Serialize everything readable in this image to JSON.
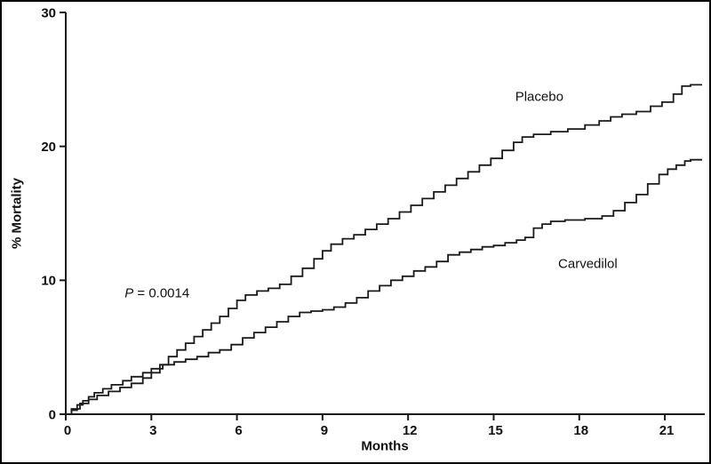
{
  "figure": {
    "background": "#ffffff",
    "border_color": "#000000",
    "line_color": "#1a1a1a"
  },
  "chart_data": {
    "type": "line",
    "subtype": "kaplan-meier-step",
    "title": "",
    "xlabel": "Months",
    "ylabel": "% Mortality",
    "xlim": [
      0,
      22.4
    ],
    "ylim": [
      0,
      30
    ],
    "x_ticks": [
      0,
      3,
      6,
      9,
      12,
      15,
      18,
      21
    ],
    "y_ticks": [
      0,
      10,
      20,
      30
    ],
    "grid": false,
    "legend": "inline-labels",
    "series": [
      {
        "name": "Placebo",
        "label_anchor": {
          "x": 16.6,
          "y": 23.7
        },
        "points": [
          [
            0,
            0
          ],
          [
            0.2,
            0.4
          ],
          [
            0.5,
            0.8
          ],
          [
            0.8,
            1.1
          ],
          [
            1.1,
            1.4
          ],
          [
            1.5,
            1.7
          ],
          [
            1.9,
            2.0
          ],
          [
            2.3,
            2.3
          ],
          [
            2.7,
            2.7
          ],
          [
            3.0,
            3.1
          ],
          [
            3.3,
            3.7
          ],
          [
            3.6,
            4.3
          ],
          [
            3.9,
            4.8
          ],
          [
            4.2,
            5.3
          ],
          [
            4.5,
            5.8
          ],
          [
            4.8,
            6.3
          ],
          [
            5.1,
            6.8
          ],
          [
            5.4,
            7.3
          ],
          [
            5.7,
            7.9
          ],
          [
            6.0,
            8.5
          ],
          [
            6.3,
            8.9
          ],
          [
            6.7,
            9.2
          ],
          [
            7.1,
            9.4
          ],
          [
            7.5,
            9.7
          ],
          [
            7.9,
            10.3
          ],
          [
            8.3,
            10.9
          ],
          [
            8.7,
            11.6
          ],
          [
            9.0,
            12.2
          ],
          [
            9.3,
            12.7
          ],
          [
            9.7,
            13.1
          ],
          [
            10.1,
            13.4
          ],
          [
            10.5,
            13.8
          ],
          [
            10.9,
            14.2
          ],
          [
            11.3,
            14.6
          ],
          [
            11.7,
            15.1
          ],
          [
            12.1,
            15.6
          ],
          [
            12.5,
            16.1
          ],
          [
            12.9,
            16.6
          ],
          [
            13.3,
            17.1
          ],
          [
            13.7,
            17.6
          ],
          [
            14.1,
            18.1
          ],
          [
            14.5,
            18.6
          ],
          [
            14.9,
            19.1
          ],
          [
            15.3,
            19.7
          ],
          [
            15.7,
            20.3
          ],
          [
            16.0,
            20.7
          ],
          [
            16.4,
            20.9
          ],
          [
            17.0,
            21.1
          ],
          [
            17.6,
            21.3
          ],
          [
            18.2,
            21.6
          ],
          [
            18.7,
            21.9
          ],
          [
            19.1,
            22.2
          ],
          [
            19.5,
            22.4
          ],
          [
            20.0,
            22.6
          ],
          [
            20.5,
            23.0
          ],
          [
            20.9,
            23.3
          ],
          [
            21.3,
            23.9
          ],
          [
            21.6,
            24.5
          ],
          [
            21.9,
            24.6
          ]
        ]
      },
      {
        "name": "Carvedilol",
        "label_anchor": {
          "x": 18.3,
          "y": 11.2
        },
        "points": [
          [
            0,
            0
          ],
          [
            0.2,
            0.3
          ],
          [
            0.4,
            0.7
          ],
          [
            0.6,
            1.0
          ],
          [
            0.8,
            1.3
          ],
          [
            1.0,
            1.6
          ],
          [
            1.3,
            1.9
          ],
          [
            1.6,
            2.2
          ],
          [
            2.0,
            2.5
          ],
          [
            2.3,
            2.8
          ],
          [
            2.7,
            3.1
          ],
          [
            3.0,
            3.4
          ],
          [
            3.4,
            3.7
          ],
          [
            3.8,
            3.9
          ],
          [
            4.2,
            4.1
          ],
          [
            4.6,
            4.3
          ],
          [
            5.0,
            4.6
          ],
          [
            5.4,
            4.8
          ],
          [
            5.8,
            5.2
          ],
          [
            6.2,
            5.7
          ],
          [
            6.6,
            6.1
          ],
          [
            7.0,
            6.5
          ],
          [
            7.4,
            6.9
          ],
          [
            7.8,
            7.3
          ],
          [
            8.2,
            7.6
          ],
          [
            8.6,
            7.7
          ],
          [
            9.0,
            7.8
          ],
          [
            9.4,
            8.0
          ],
          [
            9.8,
            8.3
          ],
          [
            10.2,
            8.7
          ],
          [
            10.6,
            9.2
          ],
          [
            11.0,
            9.6
          ],
          [
            11.4,
            10.0
          ],
          [
            11.8,
            10.3
          ],
          [
            12.2,
            10.7
          ],
          [
            12.6,
            11.0
          ],
          [
            13.0,
            11.4
          ],
          [
            13.4,
            11.9
          ],
          [
            13.8,
            12.1
          ],
          [
            14.2,
            12.3
          ],
          [
            14.6,
            12.5
          ],
          [
            15.0,
            12.6
          ],
          [
            15.4,
            12.8
          ],
          [
            15.8,
            13.0
          ],
          [
            16.1,
            13.2
          ],
          [
            16.4,
            13.9
          ],
          [
            16.7,
            14.2
          ],
          [
            17.0,
            14.4
          ],
          [
            17.5,
            14.5
          ],
          [
            18.2,
            14.6
          ],
          [
            18.8,
            14.8
          ],
          [
            19.2,
            15.2
          ],
          [
            19.6,
            15.8
          ],
          [
            20.0,
            16.4
          ],
          [
            20.4,
            17.2
          ],
          [
            20.8,
            17.9
          ],
          [
            21.1,
            18.3
          ],
          [
            21.4,
            18.6
          ],
          [
            21.7,
            18.9
          ],
          [
            21.9,
            19.0
          ]
        ]
      }
    ],
    "annotations": [
      {
        "text_italic": "P",
        "text_rest": " = 0.0014",
        "x": 3.2,
        "y": 9.0
      }
    ]
  }
}
